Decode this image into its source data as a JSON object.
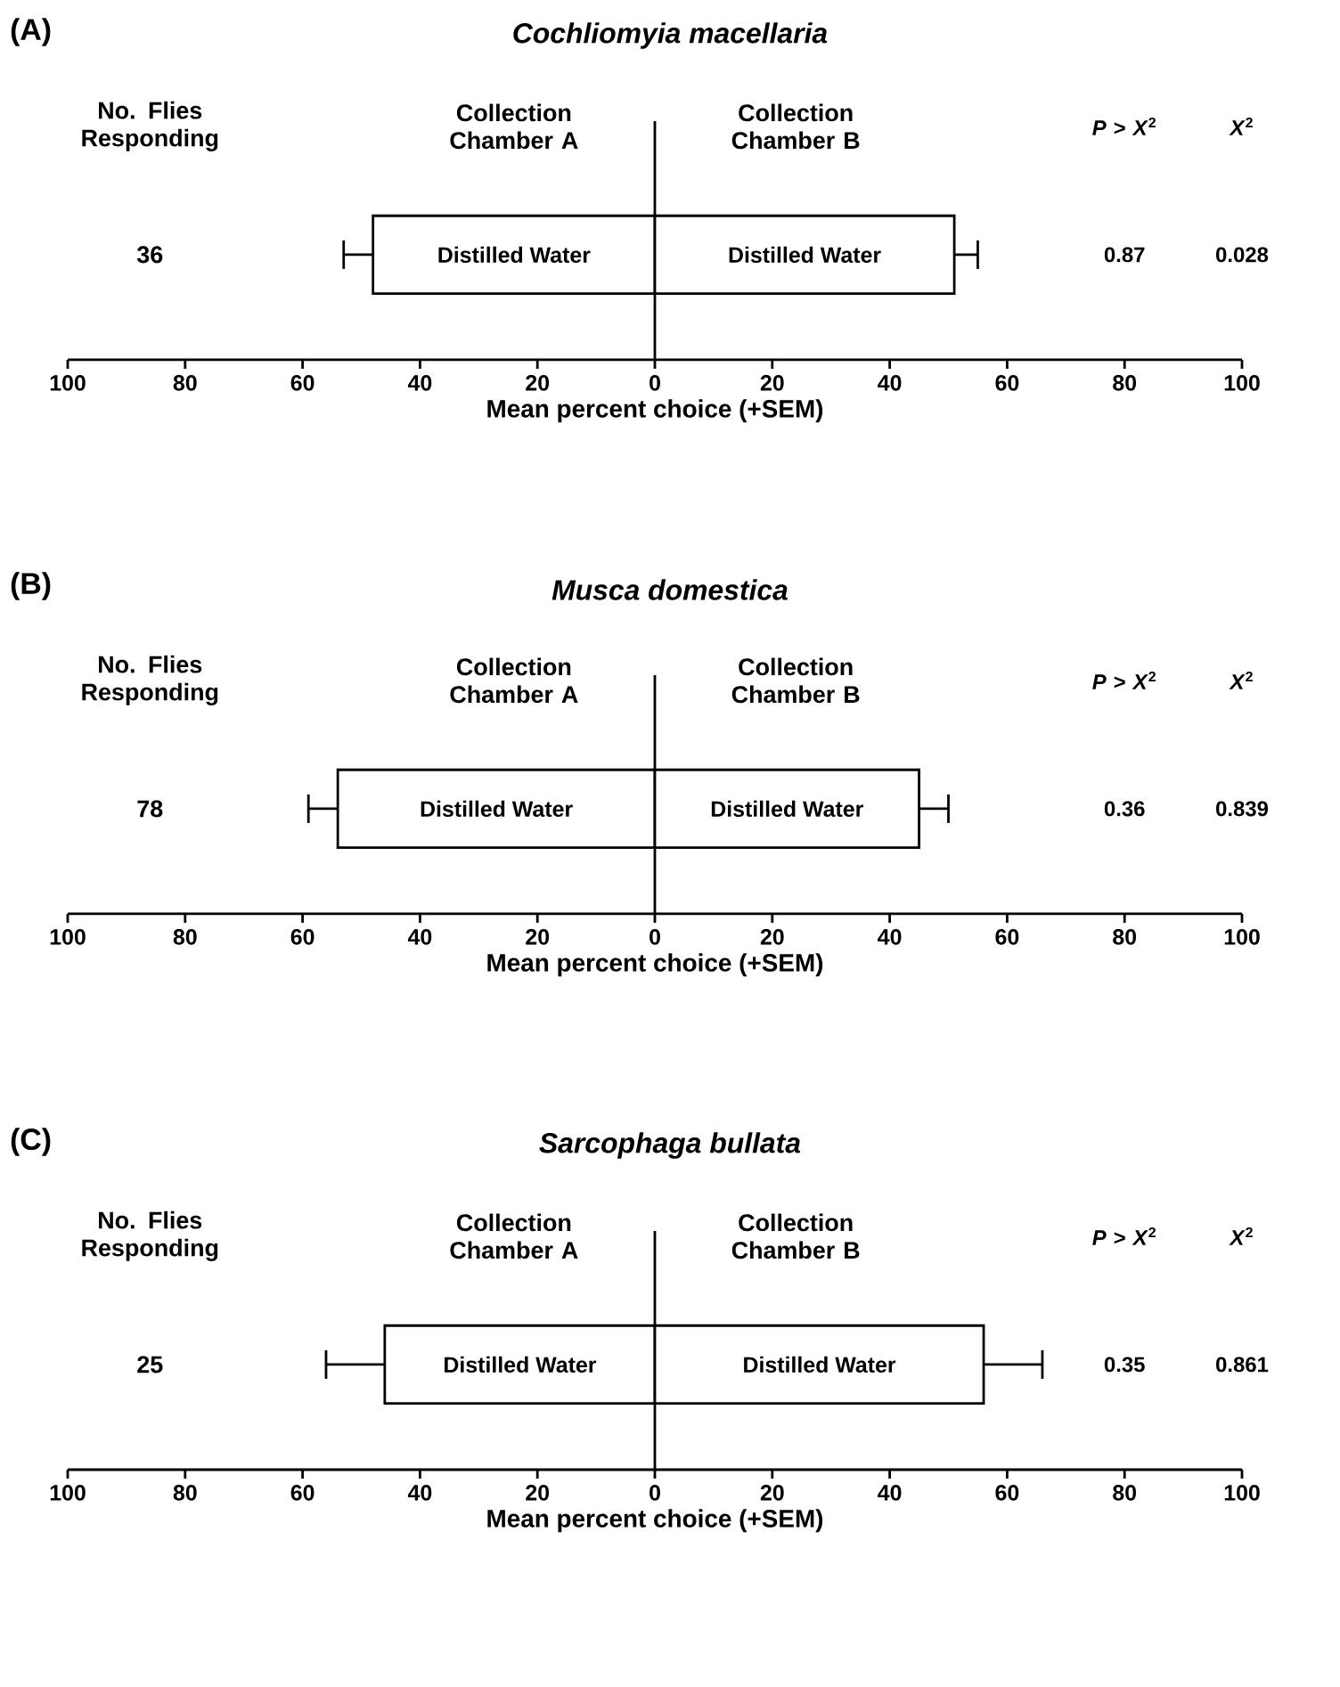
{
  "chart_data": [
    {
      "type": "bar",
      "orientation": "horizontal",
      "stacked": true,
      "title": "Cochliomyia macellaria",
      "xlabel": "Mean percent choice (+SEM)",
      "categories": [
        null
      ],
      "series": [
        {
          "name": "Collection Chamber A",
          "color": "#ffffff",
          "values": [
            -48
          ],
          "errors": [
            5
          ],
          "value_labels": [
            "Distilled Water"
          ]
        },
        {
          "name": "Collection Chamber B",
          "color": "#ffffff",
          "values": [
            51
          ],
          "errors": [
            4
          ],
          "value_labels": [
            "Distilled Water"
          ]
        }
      ],
      "xlim": [
        -100,
        100
      ],
      "xticks": [
        {
          "value": -100,
          "label": "100"
        },
        {
          "value": -80,
          "label": "80"
        },
        {
          "value": -60,
          "label": "60"
        },
        {
          "value": -40,
          "label": "40"
        },
        {
          "value": -20,
          "label": "20"
        },
        0,
        20,
        40,
        60,
        80,
        100
      ],
      "tick_labels": "x",
      "annotations": [
        "(A)",
        "No. Flies Responding",
        "36",
        "*P* > *X*$^{2}$",
        "0.87",
        "*X*$^{2}$",
        "0.028"
      ]
    },
    {
      "type": "bar",
      "orientation": "horizontal",
      "stacked": true,
      "title": "Musca domestica",
      "xlabel": "Mean percent choice (+SEM)",
      "categories": [
        null
      ],
      "series": [
        {
          "name": "Collection Chamber A",
          "color": "#ffffff",
          "values": [
            -54
          ],
          "errors": [
            5
          ],
          "value_labels": [
            "Distilled Water"
          ]
        },
        {
          "name": "Collection Chamber B",
          "color": "#ffffff",
          "values": [
            45
          ],
          "errors": [
            5
          ],
          "value_labels": [
            "Distilled Water"
          ]
        }
      ],
      "xlim": [
        -100,
        100
      ],
      "xticks": [
        {
          "value": -100,
          "label": "100"
        },
        {
          "value": -80,
          "label": "80"
        },
        {
          "value": -60,
          "label": "60"
        },
        {
          "value": -40,
          "label": "40"
        },
        {
          "value": -20,
          "label": "20"
        },
        0,
        20,
        40,
        60,
        80,
        100
      ],
      "tick_labels": "x",
      "annotations": [
        "(B)",
        "No. Flies Responding",
        "78",
        "*P* > *X*$^{2}$",
        "0.36",
        "*X*$^{2}$",
        "0.839"
      ]
    },
    {
      "type": "bar",
      "orientation": "horizontal",
      "stacked": true,
      "title": "Sarcophaga bullata",
      "xlabel": "Mean percent choice (+SEM)",
      "categories": [
        null
      ],
      "series": [
        {
          "name": "Collection Chamber A",
          "color": "#ffffff",
          "values": [
            -46
          ],
          "errors": [
            10
          ],
          "value_labels": [
            "Distilled Water"
          ]
        },
        {
          "name": "Collection Chamber B",
          "color": "#ffffff",
          "values": [
            56
          ],
          "errors": [
            10
          ],
          "value_labels": [
            "Distilled Water"
          ]
        }
      ],
      "xlim": [
        -100,
        100
      ],
      "xticks": [
        {
          "value": -100,
          "label": "100"
        },
        {
          "value": -80,
          "label": "80"
        },
        {
          "value": -60,
          "label": "60"
        },
        {
          "value": -40,
          "label": "40"
        },
        {
          "value": -20,
          "label": "20"
        },
        0,
        20,
        40,
        60,
        80,
        100
      ],
      "tick_labels": "x",
      "annotations": [
        "(C)",
        "No. Flies Responding",
        "25",
        "*P* > *X*$^{2}$",
        "0.35",
        "*X*$^{2}$",
        "0.861"
      ]
    }
  ]
}
